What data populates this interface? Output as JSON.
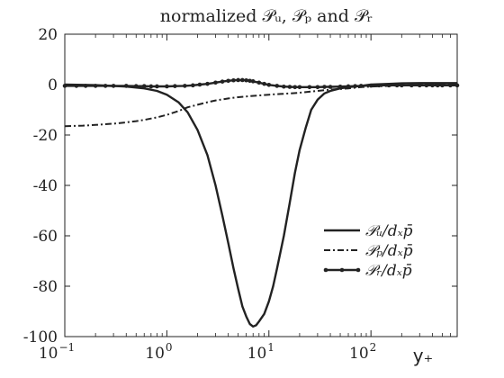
{
  "chart_data": {
    "type": "line",
    "title": "normalized 𝒫ᵤ, 𝒫ₚ and 𝒫ᵣ",
    "xlabel": "y₊",
    "ylabel": "",
    "xscale": "log",
    "xlim": [
      0.1,
      700
    ],
    "ylim": [
      -100,
      20
    ],
    "x_ticks": [
      {
        "value": 0.1,
        "base": "10",
        "exp": "−1"
      },
      {
        "value": 1,
        "base": "10",
        "exp": "0"
      },
      {
        "value": 10,
        "base": "10",
        "exp": "1"
      },
      {
        "value": 100,
        "base": "10",
        "exp": "2"
      }
    ],
    "y_ticks": [
      {
        "value": 20,
        "label": "20"
      },
      {
        "value": 0,
        "label": "0"
      },
      {
        "value": -20,
        "label": "-20"
      },
      {
        "value": -40,
        "label": "-40"
      },
      {
        "value": -60,
        "label": "-60"
      },
      {
        "value": -80,
        "label": "-80"
      },
      {
        "value": -100,
        "label": "-100"
      }
    ],
    "grid": false,
    "legend_position": "lower-right",
    "series": [
      {
        "name": "𝒫ᵤ/dₓp̄",
        "style": "solid",
        "x": [
          0.1,
          0.2,
          0.4,
          0.6,
          0.8,
          1.0,
          1.3,
          1.6,
          2.0,
          2.5,
          3.0,
          3.5,
          4.0,
          4.5,
          5.0,
          5.5,
          6.0,
          6.5,
          7.0,
          7.5,
          8.0,
          9.0,
          10,
          11,
          12,
          14,
          16,
          18,
          20,
          23,
          26,
          30,
          35,
          40,
          50,
          60,
          80,
          100,
          150,
          200,
          300,
          500,
          700
        ],
        "values": [
          0,
          -0.2,
          -0.8,
          -1.5,
          -2.5,
          -4,
          -7,
          -11,
          -18,
          -28,
          -40,
          -52,
          -63,
          -73,
          -81,
          -88,
          -92,
          -95,
          -96,
          -95.5,
          -94,
          -91,
          -86,
          -80,
          -73,
          -60,
          -47,
          -35,
          -26,
          -17,
          -10,
          -6,
          -3.5,
          -2.5,
          -1.5,
          -1,
          -0.5,
          0,
          0.3,
          0.5,
          0.6,
          0.6,
          0.6
        ]
      },
      {
        "name": "𝒫ₚ/dₓp̄",
        "style": "dashdot",
        "x": [
          0.1,
          0.15,
          0.2,
          0.3,
          0.4,
          0.5,
          0.6,
          0.8,
          1.0,
          1.3,
          1.6,
          2.0,
          2.5,
          3.0,
          4.0,
          5.0,
          6.0,
          8.0,
          10,
          13,
          16,
          20,
          30,
          40,
          60,
          80,
          100,
          150,
          200,
          300,
          500,
          700
        ],
        "values": [
          -16.5,
          -16.3,
          -16,
          -15.5,
          -15,
          -14.5,
          -14,
          -13,
          -12,
          -10.5,
          -9,
          -8,
          -7,
          -6.3,
          -5.5,
          -5,
          -4.7,
          -4.3,
          -4,
          -3.7,
          -3.5,
          -3.2,
          -2.5,
          -2,
          -1.5,
          -1,
          -0.8,
          -0.5,
          -0.3,
          -0.2,
          -0.1,
          0
        ]
      },
      {
        "name": "𝒫ᵣ/dₓp̄",
        "style": "solid-dot",
        "x": [
          0.1,
          0.13,
          0.16,
          0.2,
          0.25,
          0.3,
          0.4,
          0.5,
          0.6,
          0.7,
          0.8,
          1.0,
          1.2,
          1.5,
          1.8,
          2.1,
          2.5,
          3.0,
          3.5,
          4.0,
          4.5,
          5.0,
          5.5,
          6.0,
          6.5,
          7.0,
          8.0,
          9.0,
          10,
          12,
          14,
          16,
          18,
          20,
          25,
          30,
          35,
          40,
          50,
          60,
          70,
          80,
          100,
          120,
          150,
          180,
          200,
          250,
          300,
          350,
          400,
          450,
          500,
          600,
          700
        ],
        "values": [
          -0.5,
          -0.5,
          -0.5,
          -0.5,
          -0.5,
          -0.5,
          -0.5,
          -0.6,
          -0.6,
          -0.7,
          -0.7,
          -0.7,
          -0.6,
          -0.5,
          -0.3,
          0,
          0.3,
          0.8,
          1.2,
          1.5,
          1.7,
          1.8,
          1.8,
          1.7,
          1.5,
          1.3,
          0.8,
          0.3,
          -0.1,
          -0.5,
          -0.8,
          -0.9,
          -1,
          -1,
          -1,
          -1,
          -0.9,
          -0.9,
          -0.8,
          -0.7,
          -0.6,
          -0.5,
          -0.4,
          -0.3,
          -0.3,
          -0.3,
          -0.3,
          -0.3,
          -0.3,
          -0.3,
          -0.3,
          -0.3,
          -0.3,
          -0.3,
          -0.3
        ]
      }
    ]
  }
}
